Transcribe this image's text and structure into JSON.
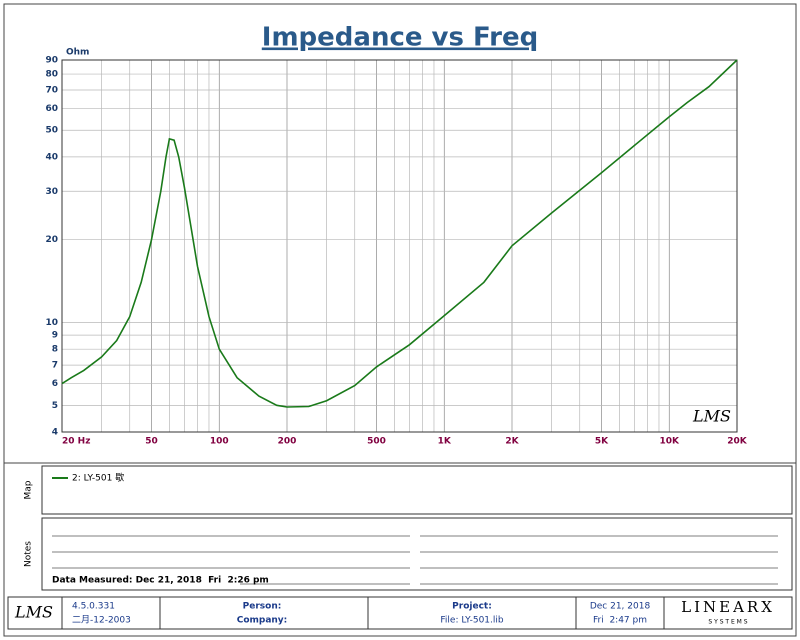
{
  "chart_data": {
    "type": "line",
    "title": "Impedance vs Freq",
    "y_unit": "Ohm",
    "watermark": "LMS",
    "log_x": true,
    "log_y": true,
    "grid": true,
    "xlim": [
      20,
      20000
    ],
    "ylim": [
      4,
      90
    ],
    "xticks": [
      {
        "value": 20,
        "label": "20 Hz"
      },
      50,
      100,
      200,
      500,
      {
        "value": 1000,
        "label": "1K"
      },
      {
        "value": 2000,
        "label": "2K"
      },
      {
        "value": 5000,
        "label": "5K"
      },
      {
        "value": 10000,
        "label": "10K"
      },
      {
        "value": 20000,
        "label": "20K"
      }
    ],
    "xgrid": [
      30,
      40,
      60,
      70,
      80,
      90,
      300,
      400,
      600,
      700,
      800,
      900,
      3000,
      4000,
      6000,
      7000,
      8000,
      9000
    ],
    "yticks": [
      4,
      5,
      6,
      7,
      8,
      9,
      10,
      20,
      30,
      40,
      50,
      60,
      70,
      80,
      90
    ],
    "x": [
      20,
      22,
      25,
      30,
      35,
      40,
      45,
      50,
      55,
      58,
      60,
      63,
      66,
      70,
      75,
      80,
      90,
      100,
      120,
      150,
      180,
      200,
      250,
      300,
      400,
      500,
      700,
      1000,
      1500,
      2000,
      3000,
      5000,
      7000,
      10000,
      12000,
      15000,
      20000
    ],
    "series": [
      {
        "name": "2: LY-501 歇",
        "color": "#1a7a1a",
        "values": [
          6.0,
          6.3,
          6.7,
          7.5,
          8.6,
          10.5,
          14,
          20,
          30,
          40,
          46.5,
          46,
          40,
          31,
          22,
          16,
          10.5,
          8,
          6.3,
          5.4,
          5.0,
          4.93,
          4.95,
          5.2,
          5.9,
          6.9,
          8.3,
          10.6,
          14,
          19,
          25,
          35,
          44,
          56,
          63,
          72,
          90
        ]
      }
    ]
  },
  "map": {
    "label": "Map"
  },
  "notes": {
    "label": "Notes",
    "measured": "Data Measured: Dec 21, 2018  Fri  2:26 pm"
  },
  "footer": {
    "logo": "LMS",
    "version": "4.5.0.331",
    "build_date": "二月-12-2003",
    "person": "Person:",
    "company": "Company:",
    "project": "Project:",
    "file": "File: LY-501.lib",
    "date": "Dec 21, 2018",
    "time": "Fri  2:47 pm",
    "brand": "LINEARX",
    "brand_sub": "S Y S T E M S"
  }
}
